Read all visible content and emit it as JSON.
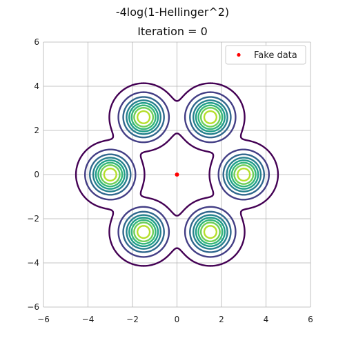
{
  "chart_data": {
    "type": "contour",
    "title": "-4log(1-Hellinger^2)",
    "subtitle": "Iteration = 0",
    "xlabel": "",
    "ylabel": "",
    "xlim": [
      -6,
      6
    ],
    "ylim": [
      -6,
      6
    ],
    "x_ticks": [
      "−6",
      "−4",
      "−2",
      "0",
      "2",
      "4",
      "6"
    ],
    "y_ticks": [
      "−6",
      "−4",
      "−2",
      "0",
      "2",
      "4",
      "6"
    ],
    "grid": true,
    "legend": {
      "position": "top-right",
      "entries": [
        "Fake data"
      ]
    },
    "real_modes": {
      "count": 6,
      "radius": 3,
      "centers": [
        [
          3,
          0
        ],
        [
          1.5,
          2.598
        ],
        [
          -1.5,
          2.598
        ],
        [
          -3,
          0
        ],
        [
          -1.5,
          -2.598
        ],
        [
          1.5,
          -2.598
        ]
      ]
    },
    "contour_levels": [
      0.02,
      0.12,
      0.25,
      0.38,
      0.5,
      0.62,
      0.74,
      0.88
    ],
    "contour_colors": [
      "#440154",
      "#433e85",
      "#31688e",
      "#26828e",
      "#1f9e89",
      "#35b779",
      "#6ece58",
      "#b5de2b"
    ],
    "series": [
      {
        "name": "Fake data",
        "type": "scatter",
        "color": "#ff0000",
        "points": [
          [
            0,
            0
          ]
        ]
      }
    ]
  }
}
